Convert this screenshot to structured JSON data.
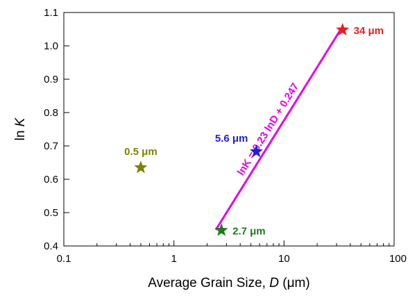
{
  "chart_data": {
    "type": "scatter",
    "title": "",
    "xlabel": {
      "prefix": "Average Grain Size, ",
      "symbol": "D",
      "unit": " (μm)"
    },
    "ylabel": {
      "prefix": "ln ",
      "symbol": "K"
    },
    "xscale": "log",
    "xlim": [
      0.1,
      100
    ],
    "ylim": [
      0.4,
      1.1
    ],
    "grid": false,
    "x_ticks": [
      {
        "value": 0.1,
        "label": "0.1"
      },
      {
        "value": 1,
        "label": "1"
      },
      {
        "value": 10,
        "label": "10"
      },
      {
        "value": 100,
        "label": "100"
      }
    ],
    "y_ticks": [
      {
        "value": 0.4,
        "label": "0.4"
      },
      {
        "value": 0.5,
        "label": "0.5"
      },
      {
        "value": 0.6,
        "label": "0.6"
      },
      {
        "value": 0.7,
        "label": "0.7"
      },
      {
        "value": 0.8,
        "label": "0.8"
      },
      {
        "value": 0.9,
        "label": "0.9"
      },
      {
        "value": 1.0,
        "label": "1.0"
      },
      {
        "value": 1.1,
        "label": "1.1"
      }
    ],
    "points": [
      {
        "x": 0.5,
        "y": 0.635,
        "label": "0.5 μm",
        "color": "#808000",
        "label_position": "above"
      },
      {
        "x": 2.7,
        "y": 0.447,
        "label": "2.7 μm",
        "color": "#1e7a1e",
        "label_position": "right"
      },
      {
        "x": 5.6,
        "y": 0.683,
        "label": "5.6 μm",
        "color": "#1f1fd6",
        "label_position": "above-left"
      },
      {
        "x": 34,
        "y": 1.048,
        "label": "34 μm",
        "color": "#ee1c1c",
        "label_position": "right"
      }
    ],
    "fit_line": {
      "x_start": 2.4,
      "x_end": 34,
      "equation": "lnK = 0.23 lnD + 0.247",
      "color": "#e600e6"
    }
  }
}
